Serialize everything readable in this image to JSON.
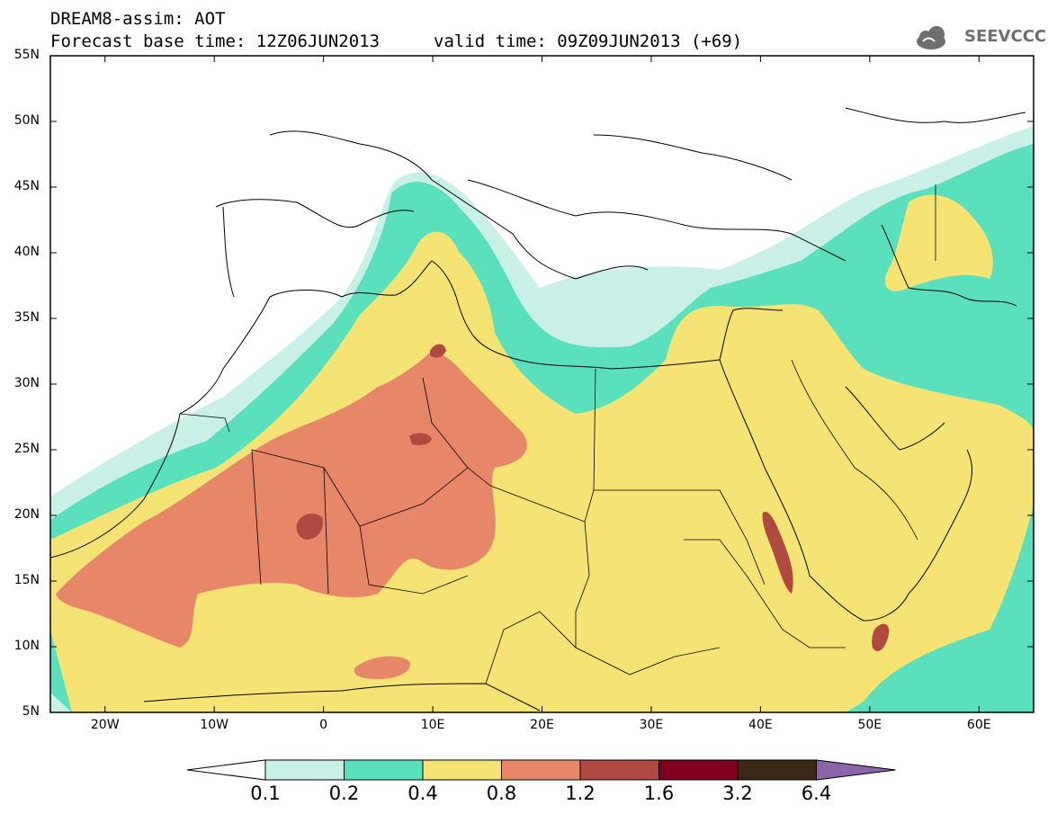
{
  "header": {
    "title_line_1": "DREAM8-assim: AOT",
    "title_line_2": "Forecast base time: 12Z06JUN2013",
    "valid_time": "valid time: 09Z09JUN2013 (+69)"
  },
  "logo": {
    "text": "SEEVCCC",
    "icon": "cloud-icon"
  },
  "map": {
    "lon_range": [
      -25,
      65
    ],
    "lat_range": [
      5,
      55
    ],
    "lat_labels": [
      "55N",
      "50N",
      "45N",
      "40N",
      "35N",
      "30N",
      "25N",
      "20N",
      "15N",
      "10N",
      "5N"
    ],
    "lon_labels": [
      "20W",
      "10W",
      "0",
      "10E",
      "20E",
      "30E",
      "40E",
      "50E",
      "60E"
    ]
  },
  "colorbar": {
    "labels": [
      "0.1",
      "0.2",
      "0.4",
      "0.8",
      "1.2",
      "1.6",
      "3.2",
      "6.4"
    ],
    "colors": [
      "#c8f0e6",
      "#5ae0bc",
      "#f5e373",
      "#e8866a",
      "#b04a40",
      "#800020",
      "#3c2814",
      "#8c64aa"
    ]
  }
}
